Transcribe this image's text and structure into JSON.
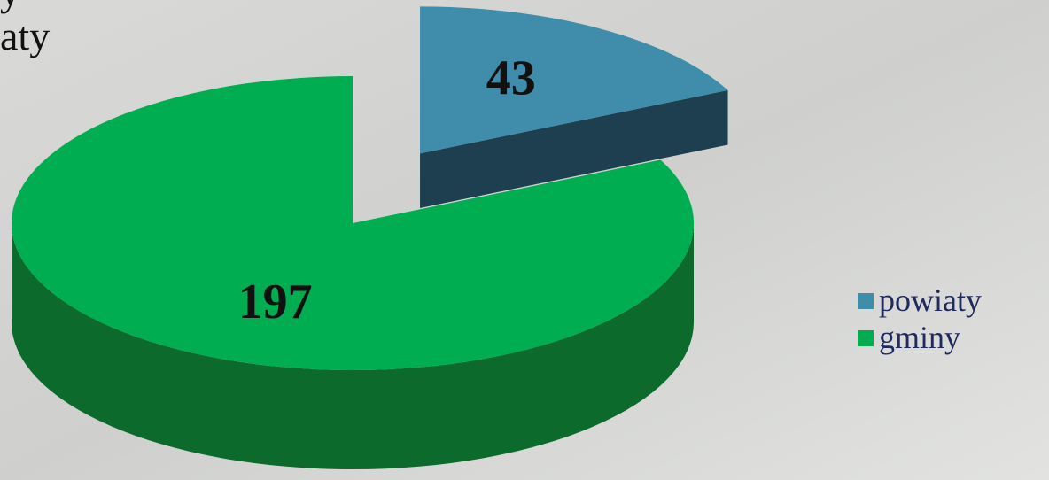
{
  "chart_data": {
    "type": "pie",
    "title_lines": [
      "y",
      "aty"
    ],
    "categories": [
      "powiaty",
      "gminy"
    ],
    "values": [
      43,
      197
    ],
    "colors": [
      "#3f8dab",
      "#00ad50"
    ],
    "side_colors": [
      "#1d3f4f",
      "#0b6a2c"
    ],
    "exploded": [
      true,
      false
    ],
    "legend": "right"
  }
}
